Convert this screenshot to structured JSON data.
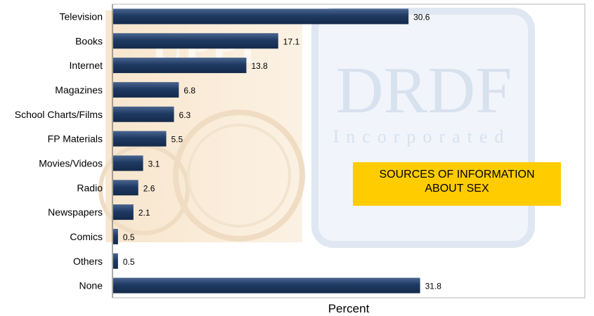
{
  "chart_data": {
    "type": "bar",
    "orientation": "horizontal",
    "title_lines": [
      "SOURCES OF INFORMATION",
      "ABOUT SEX"
    ],
    "xlabel": "Percent",
    "ylabel": "",
    "xlim": [
      0,
      40
    ],
    "grid": false,
    "categories": [
      "Television",
      "Books",
      "Internet",
      "Magazines",
      "School Charts/Films",
      "FP Materials",
      "Movies/Videos",
      "Radio",
      "Newspapers",
      "Comics",
      "Others",
      "None"
    ],
    "values": [
      30.6,
      17.1,
      13.8,
      6.8,
      6.3,
      5.5,
      3.1,
      2.6,
      2.1,
      0.5,
      0.5,
      31.8
    ],
    "value_labels": [
      "30.6",
      "17.1",
      "13.8",
      "6.8",
      "6.3",
      "5.5",
      "3.1",
      "2.6",
      "2.1",
      "0.5",
      "0.5",
      "31.8"
    ],
    "bar_color": "#1f3a63",
    "title_background": "#ffcc00"
  },
  "watermark": {
    "brand": "DRDF",
    "subtitle": "Incorporated",
    "left_letters": "UPPI"
  }
}
